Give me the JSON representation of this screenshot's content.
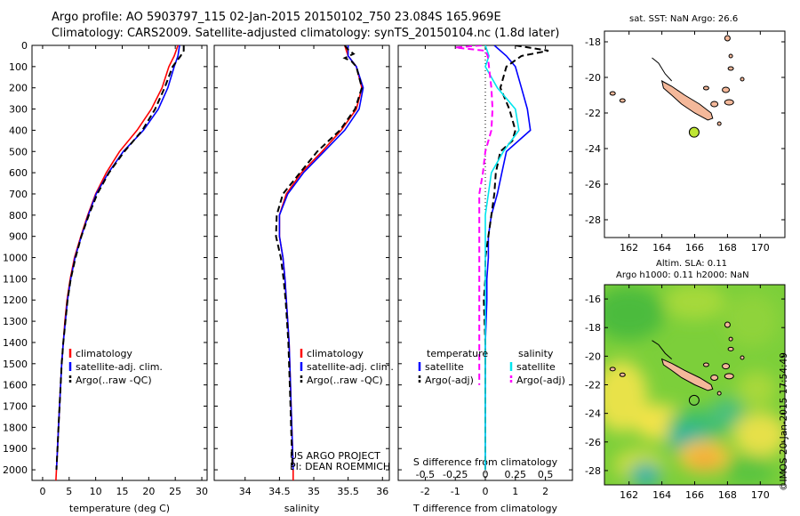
{
  "header": {
    "title_line1": "Argo profile: AO 5903797_115 02-Jan-2015 20150102_750 23.084S 165.969E",
    "title_line2": "Climatology: CARS2009. Satellite-adjusted climatology: synTS_20150104.nc (1.8d later)"
  },
  "side": {
    "sst_title": "sat. SST: NaN Argo: 26.6",
    "sla_title1": "Altim. SLA: 0.11",
    "sla_title2": "Argo h1000: 0.11 h2000: NaN",
    "imos_stamp": "©IMOS 20-Jan-2015 17:54:49"
  },
  "colors": {
    "climatology": "#ff0000",
    "satellite": "#0000ff",
    "argo": "#000000",
    "sal_satellite": "#00e5ee",
    "sal_argo": "#ff00ff",
    "land": "#f4b89a"
  },
  "chart_data": [
    {
      "type": "line",
      "xlabel": "temperature (deg C)",
      "ylim": [
        0,
        2050
      ],
      "xlim": [
        -2,
        31
      ],
      "xticks": [
        0,
        5,
        10,
        15,
        20,
        25,
        30
      ],
      "yticks": [
        0,
        100,
        200,
        300,
        400,
        500,
        600,
        700,
        800,
        900,
        1000,
        1100,
        1200,
        1300,
        1400,
        1500,
        1600,
        1700,
        1800,
        1900,
        2000
      ],
      "legend": [
        "climatology",
        "satellite-adj. clim.",
        "Argo(..raw -QC)"
      ],
      "series": [
        {
          "name": "climatology",
          "style": "solid",
          "color": "#ff0000",
          "points": [
            [
              25.5,
              0
            ],
            [
              24.8,
              50
            ],
            [
              23.8,
              100
            ],
            [
              22.5,
              200
            ],
            [
              20.5,
              300
            ],
            [
              17.8,
              400
            ],
            [
              14.5,
              500
            ],
            [
              12.0,
              600
            ],
            [
              10.0,
              700
            ],
            [
              8.5,
              800
            ],
            [
              7.2,
              900
            ],
            [
              6.0,
              1000
            ],
            [
              5.2,
              1100
            ],
            [
              4.6,
              1200
            ],
            [
              4.2,
              1300
            ],
            [
              3.9,
              1400
            ],
            [
              3.6,
              1500
            ],
            [
              3.4,
              1600
            ],
            [
              3.2,
              1700
            ],
            [
              3.0,
              1800
            ],
            [
              2.8,
              1900
            ],
            [
              2.6,
              2000
            ],
            [
              2.5,
              2050
            ]
          ]
        },
        {
          "name": "satellite-adj. clim.",
          "style": "solid",
          "color": "#0000ff",
          "points": [
            [
              25.8,
              0
            ],
            [
              25.5,
              50
            ],
            [
              24.8,
              100
            ],
            [
              23.6,
              200
            ],
            [
              21.8,
              300
            ],
            [
              19.0,
              400
            ],
            [
              15.2,
              500
            ],
            [
              12.4,
              600
            ],
            [
              10.1,
              700
            ],
            [
              8.6,
              800
            ],
            [
              7.3,
              900
            ],
            [
              6.1,
              1000
            ],
            [
              5.3,
              1100
            ],
            [
              4.7,
              1200
            ],
            [
              4.3,
              1300
            ],
            [
              3.9,
              1400
            ],
            [
              3.6,
              1500
            ],
            [
              3.4,
              1600
            ],
            [
              3.2,
              1700
            ],
            [
              3.0,
              1800
            ],
            [
              2.8,
              1900
            ],
            [
              2.6,
              2000
            ]
          ]
        },
        {
          "name": "Argo(..raw -QC)",
          "style": "dashed",
          "color": "#000000",
          "points": [
            [
              26.6,
              0
            ],
            [
              26.6,
              25
            ],
            [
              26.0,
              50
            ],
            [
              24.5,
              100
            ],
            [
              23.0,
              200
            ],
            [
              21.2,
              300
            ],
            [
              18.8,
              400
            ],
            [
              15.4,
              500
            ],
            [
              12.5,
              600
            ],
            [
              10.3,
              700
            ],
            [
              8.7,
              800
            ],
            [
              7.3,
              900
            ],
            [
              6.2,
              1000
            ],
            [
              5.3,
              1100
            ],
            [
              4.7,
              1200
            ],
            [
              4.3,
              1300
            ],
            [
              3.9,
              1400
            ],
            [
              3.6,
              1500
            ],
            [
              3.4,
              1600
            ],
            [
              3.2,
              1700
            ],
            [
              3.0,
              1800
            ],
            [
              2.8,
              1900
            ],
            [
              2.6,
              2000
            ]
          ]
        }
      ]
    },
    {
      "type": "line",
      "xlabel": "salinity",
      "ylim": [
        0,
        2050
      ],
      "xlim": [
        33.55,
        36.1
      ],
      "xticks": [
        34,
        34.5,
        35,
        35.5,
        36
      ],
      "legend": [
        "climatology",
        "satellite-adj. clim.",
        "Argo(..raw -QC)"
      ],
      "annotation": [
        "US ARGO PROJECT",
        "PI: DEAN ROEMMICH"
      ],
      "series": [
        {
          "name": "climatology",
          "style": "solid",
          "color": "#ff0000",
          "points": [
            [
              35.45,
              0
            ],
            [
              35.5,
              50
            ],
            [
              35.62,
              100
            ],
            [
              35.7,
              200
            ],
            [
              35.62,
              300
            ],
            [
              35.4,
              400
            ],
            [
              35.12,
              500
            ],
            [
              34.82,
              600
            ],
            [
              34.6,
              700
            ],
            [
              34.5,
              800
            ],
            [
              34.5,
              900
            ],
            [
              34.55,
              1000
            ],
            [
              34.58,
              1100
            ],
            [
              34.6,
              1200
            ],
            [
              34.62,
              1300
            ],
            [
              34.64,
              1400
            ],
            [
              34.65,
              1500
            ],
            [
              34.66,
              1600
            ],
            [
              34.67,
              1700
            ],
            [
              34.68,
              1800
            ],
            [
              34.69,
              1900
            ],
            [
              34.7,
              2000
            ],
            [
              34.7,
              2050
            ]
          ]
        },
        {
          "name": "satellite-adj. clim.",
          "style": "solid",
          "color": "#0000ff",
          "points": [
            [
              35.5,
              0
            ],
            [
              35.5,
              50
            ],
            [
              35.62,
              100
            ],
            [
              35.72,
              200
            ],
            [
              35.66,
              300
            ],
            [
              35.45,
              400
            ],
            [
              35.15,
              500
            ],
            [
              34.85,
              600
            ],
            [
              34.62,
              700
            ],
            [
              34.5,
              800
            ],
            [
              34.5,
              900
            ],
            [
              34.55,
              1000
            ],
            [
              34.58,
              1100
            ],
            [
              34.6,
              1200
            ],
            [
              34.62,
              1300
            ],
            [
              34.64,
              1400
            ],
            [
              34.65,
              1500
            ],
            [
              34.66,
              1600
            ],
            [
              34.67,
              1700
            ],
            [
              34.68,
              1800
            ],
            [
              34.69,
              1900
            ],
            [
              34.7,
              2000
            ]
          ]
        },
        {
          "name": "Argo(..raw -QC)",
          "style": "dashed",
          "color": "#000000",
          "points": [
            [
              35.45,
              0
            ],
            [
              35.5,
              20
            ],
            [
              35.58,
              40
            ],
            [
              35.45,
              60
            ],
            [
              35.55,
              75
            ],
            [
              35.62,
              100
            ],
            [
              35.7,
              200
            ],
            [
              35.6,
              300
            ],
            [
              35.38,
              400
            ],
            [
              35.05,
              500
            ],
            [
              34.8,
              600
            ],
            [
              34.55,
              700
            ],
            [
              34.46,
              800
            ],
            [
              34.45,
              900
            ],
            [
              34.52,
              1000
            ],
            [
              34.56,
              1100
            ],
            [
              34.59,
              1200
            ],
            [
              34.61,
              1300
            ],
            [
              34.63,
              1400
            ],
            [
              34.64,
              1500
            ],
            [
              34.65,
              1600
            ],
            [
              34.66,
              1700
            ],
            [
              34.67,
              1800
            ],
            [
              34.68,
              1900
            ],
            [
              34.69,
              2000
            ]
          ]
        }
      ]
    },
    {
      "type": "line",
      "xlabel": "T difference from climatology",
      "xlabel2": "S difference from climatology",
      "ylim": [
        0,
        2050
      ],
      "xlim": [
        -2.9,
        2.9
      ],
      "xticks": [
        -2,
        -1,
        0,
        1,
        2
      ],
      "xtick_labels": [
        "-2",
        "-1",
        "0",
        "1",
        "2"
      ],
      "s_xticks": [
        -0.5,
        -0.25,
        0,
        0.25,
        0.5
      ],
      "s_xtick_labels": [
        "-0.5",
        "-0.25",
        "0",
        "0.25",
        "0.5"
      ],
      "legend_headers": [
        "temperature",
        "salinity"
      ],
      "legend": [
        "satellite",
        "Argo(-adj)",
        "satellite",
        "Argo(-adj)"
      ],
      "series": [
        {
          "name": "satellite",
          "group": "temperature",
          "style": "solid",
          "color": "#0000ff",
          "points": [
            [
              0.3,
              0
            ],
            [
              0.7,
              50
            ],
            [
              1.0,
              100
            ],
            [
              1.2,
              200
            ],
            [
              1.4,
              300
            ],
            [
              1.5,
              400
            ],
            [
              0.7,
              500
            ],
            [
              0.55,
              600
            ],
            [
              0.4,
              700
            ],
            [
              0.2,
              800
            ],
            [
              0.1,
              900
            ],
            [
              0.1,
              1000
            ],
            [
              0.05,
              1100
            ],
            [
              0.05,
              1200
            ],
            [
              0.0,
              1400
            ],
            [
              0.0,
              1600
            ],
            [
              0.0,
              1800
            ],
            [
              0.0,
              2000
            ]
          ]
        },
        {
          "name": "Argo(-adj)",
          "group": "temperature",
          "style": "dashed",
          "color": "#000000",
          "points": [
            [
              1.0,
              0
            ],
            [
              2.1,
              25
            ],
            [
              1.2,
              50
            ],
            [
              0.7,
              100
            ],
            [
              0.5,
              200
            ],
            [
              0.8,
              300
            ],
            [
              1.0,
              400
            ],
            [
              0.9,
              450
            ],
            [
              0.5,
              500
            ],
            [
              0.35,
              600
            ],
            [
              0.3,
              700
            ],
            [
              0.2,
              800
            ],
            [
              0.1,
              900
            ],
            [
              0.0,
              1000
            ],
            [
              0.0,
              1100
            ],
            [
              -0.05,
              1200
            ],
            [
              0.0,
              1400
            ],
            [
              0.0,
              1600
            ],
            [
              0.0,
              1800
            ],
            [
              0.0,
              2000
            ]
          ]
        },
        {
          "name": "satellite",
          "group": "salinity",
          "style": "solid",
          "color": "#00e5ee",
          "points": [
            [
              0.0,
              0
            ],
            [
              0.03,
              50
            ],
            [
              0.0,
              100
            ],
            [
              0.1,
              200
            ],
            [
              0.25,
              300
            ],
            [
              0.28,
              400
            ],
            [
              0.15,
              500
            ],
            [
              0.05,
              600
            ],
            [
              0.0,
              800
            ],
            [
              0.0,
              1000
            ],
            [
              0.0,
              1500
            ],
            [
              0.0,
              2000
            ]
          ]
        },
        {
          "name": "Argo(-adj)",
          "group": "salinity",
          "style": "dashed",
          "color": "#ff00ff",
          "points": [
            [
              -0.03,
              0
            ],
            [
              -0.25,
              10
            ],
            [
              0.0,
              25
            ],
            [
              0.02,
              50
            ],
            [
              0.03,
              100
            ],
            [
              0.05,
              200
            ],
            [
              0.06,
              300
            ],
            [
              0.05,
              400
            ],
            [
              0.0,
              500
            ],
            [
              -0.02,
              600
            ],
            [
              -0.05,
              700
            ],
            [
              -0.05,
              800
            ],
            [
              -0.05,
              900
            ],
            [
              -0.05,
              1000
            ],
            [
              -0.05,
              1200
            ],
            [
              -0.05,
              1400
            ],
            [
              -0.05,
              1600
            ]
          ]
        }
      ]
    },
    {
      "type": "map",
      "title": "sat. SST: NaN Argo: 26.6",
      "xlim": [
        160.5,
        171.5
      ],
      "ylim": [
        -29,
        -17.4
      ],
      "xticks": [
        162,
        164,
        166,
        168,
        170
      ],
      "yticks": [
        -18,
        -20,
        -22,
        -24,
        -26,
        -28
      ],
      "argo_position": {
        "lon": 165.969,
        "lat": -23.084
      }
    },
    {
      "type": "heatmap",
      "title": "Altim. SLA: 0.11",
      "xlim": [
        160.5,
        171.5
      ],
      "ylim": [
        -29,
        -15
      ],
      "xticks": [
        162,
        164,
        166,
        168,
        170
      ],
      "yticks": [
        -16,
        -18,
        -20,
        -22,
        -24,
        -26,
        -28
      ],
      "argo_position": {
        "lon": 165.969,
        "lat": -23.084
      }
    }
  ]
}
